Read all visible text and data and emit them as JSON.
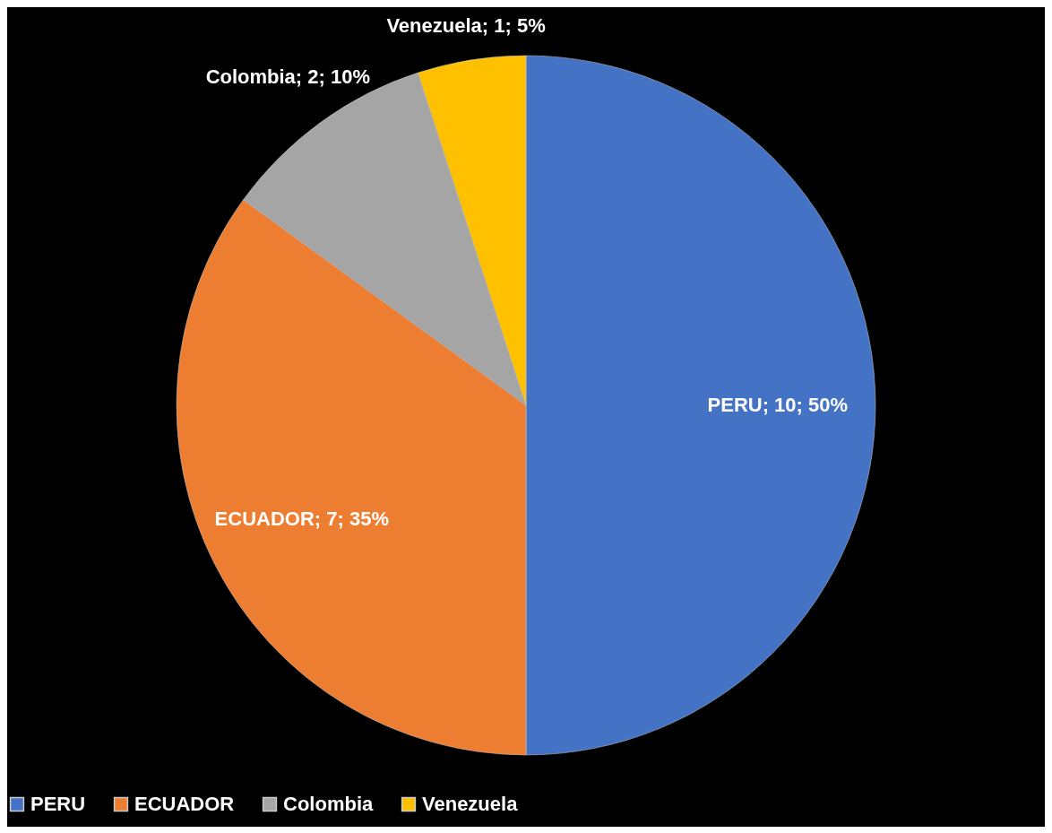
{
  "chart_data": {
    "type": "pie",
    "categories": [
      "PERU",
      "ECUADOR",
      "Colombia",
      "Venezuela"
    ],
    "values": [
      10,
      7,
      2,
      1
    ],
    "colors": [
      "#4472c4",
      "#ed7d31",
      "#a5a5a5",
      "#ffc000"
    ],
    "value_labels": [
      "PERU; 10; 50%",
      "ECUADOR; 7; 35%",
      "Colombia; 2; 10%",
      "Venezuela; 1; 5%"
    ],
    "legend": "bottom"
  }
}
